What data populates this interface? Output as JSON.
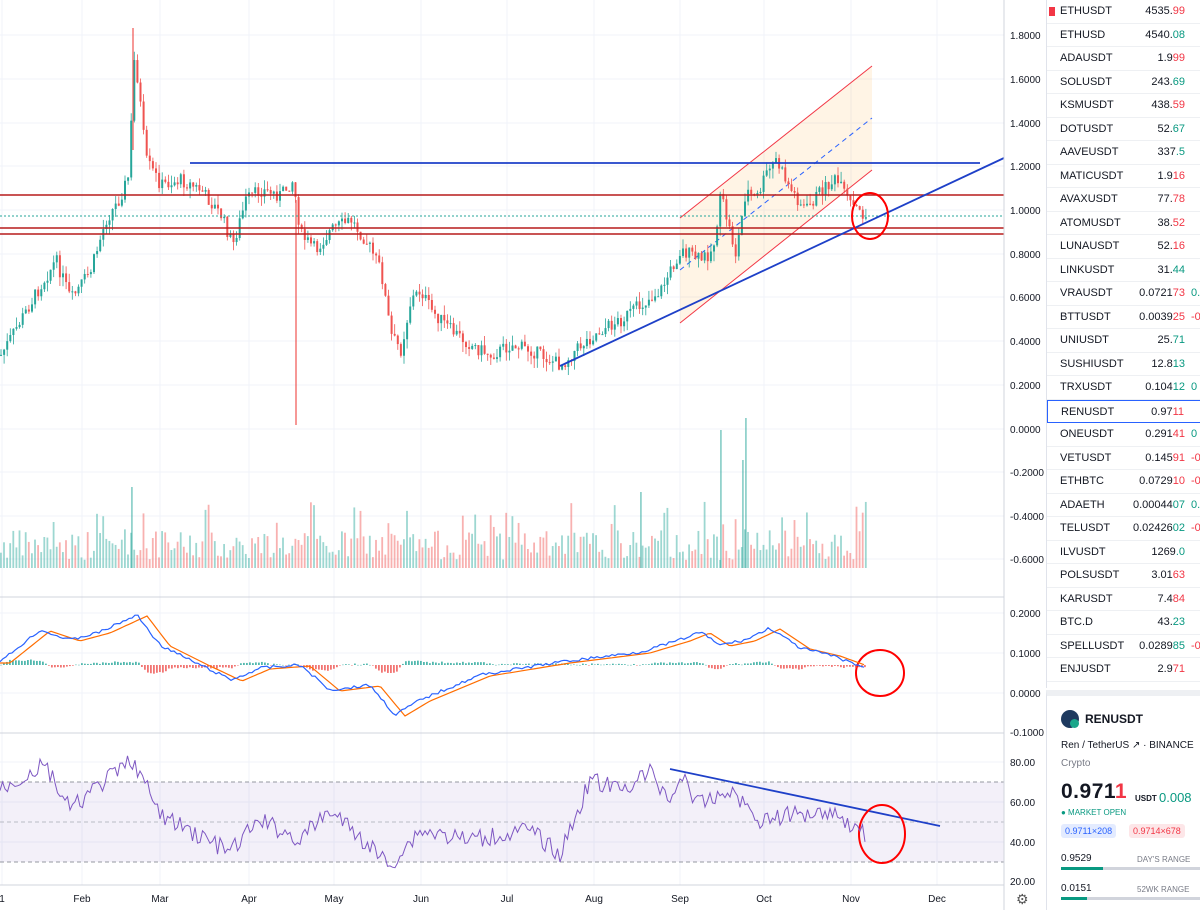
{
  "price_axis": [
    "1.8000",
    "1.6000",
    "1.4000",
    "1.2000",
    "1.0000",
    "0.8000",
    "0.6000",
    "0.4000",
    "0.2000",
    "0.0000",
    "-0.2000",
    "-0.4000",
    "-0.6000"
  ],
  "macd_axis": [
    "0.2000",
    "0.1000",
    "0.0000",
    "-0.1000"
  ],
  "rsi_axis": [
    "80.00",
    "60.00",
    "40.00",
    "20.00"
  ],
  "time_axis": [
    "1",
    "Feb",
    "Mar",
    "Apr",
    "May",
    "Jun",
    "Jul",
    "Aug",
    "Sep",
    "Oct",
    "Nov",
    "Dec"
  ],
  "watchlist": [
    {
      "symbol": "ETHUSDT",
      "price": "4535.99",
      "change": "",
      "dir": "dn",
      "flag": true
    },
    {
      "symbol": "ETHUSD",
      "price": "4540.08",
      "change": "",
      "dir": "up"
    },
    {
      "symbol": "ADAUSDT",
      "price": "1.999",
      "change": "",
      "dir": "dn"
    },
    {
      "symbol": "SOLUSDT",
      "price": "243.69",
      "change": "",
      "dir": "up"
    },
    {
      "symbol": "KSMUSDT",
      "price": "438.59",
      "change": "",
      "dir": "dn"
    },
    {
      "symbol": "DOTUSDT",
      "price": "52.67",
      "change": "",
      "dir": "up"
    },
    {
      "symbol": "AAVEUSDT",
      "price": "337.5",
      "change": "",
      "dir": "up"
    },
    {
      "symbol": "MATICUSDT",
      "price": "1.916",
      "change": "",
      "dir": "dn"
    },
    {
      "symbol": "AVAXUSDT",
      "price": "77.78",
      "change": "",
      "dir": "dn"
    },
    {
      "symbol": "ATOMUSDT",
      "price": "38.52",
      "change": "",
      "dir": "dn"
    },
    {
      "symbol": "LUNAUSDT",
      "price": "52.16",
      "change": "",
      "dir": "dn"
    },
    {
      "symbol": "LINKUSDT",
      "price": "31.44",
      "change": "",
      "dir": "up"
    },
    {
      "symbol": "VRAUSDT",
      "price": "0.072173",
      "change": "0.",
      "dir": "dn"
    },
    {
      "symbol": "BTTUSDT",
      "price": "0.003925",
      "change": "-0",
      "dir": "dn"
    },
    {
      "symbol": "UNIUSDT",
      "price": "25.71",
      "change": "",
      "dir": "up"
    },
    {
      "symbol": "SUSHIUSDT",
      "price": "12.813",
      "change": "",
      "dir": "up"
    },
    {
      "symbol": "TRXUSDT",
      "price": "0.10412",
      "change": "0",
      "dir": "up"
    },
    {
      "symbol": "RENUSDT",
      "price": "0.9711",
      "change": "",
      "dir": "dn",
      "selected": true
    },
    {
      "symbol": "ONEUSDT",
      "price": "0.29141",
      "change": "0",
      "dir": "dn"
    },
    {
      "symbol": "VETUSDT",
      "price": "0.14591",
      "change": "-0",
      "dir": "dn"
    },
    {
      "symbol": "ETHBTC",
      "price": "0.072910",
      "change": "-0",
      "dir": "dn"
    },
    {
      "symbol": "ADAETH",
      "price": "0.0004407",
      "change": "0.0",
      "dir": "up"
    },
    {
      "symbol": "TELUSDT",
      "price": "0.0242602",
      "change": "-0",
      "dir": "up"
    },
    {
      "symbol": "ILVUSDT",
      "price": "1269.0",
      "change": "",
      "dir": "up"
    },
    {
      "symbol": "POLSUSDT",
      "price": "3.0163",
      "change": "",
      "dir": "dn"
    },
    {
      "symbol": "KARUSDT",
      "price": "7.484",
      "change": "",
      "dir": "dn"
    },
    {
      "symbol": "BTC.D",
      "price": "43.23",
      "change": "",
      "dir": "up"
    },
    {
      "symbol": "SPELLUSDT",
      "price": "0.028985",
      "change": "-0",
      "dir": "up"
    },
    {
      "symbol": "ENJUSDT",
      "price": "2.971",
      "change": "",
      "dir": "dn"
    }
  ],
  "details": {
    "symbol": "RENUSDT",
    "description": "Ren / TetherUS ↗ · BINANCE",
    "type": "Crypto",
    "price_main": "0.971",
    "price_last": "1",
    "currency": "USDT",
    "change": "0.008",
    "market": "● MARKET OPEN",
    "bid": "0.9711×208",
    "ask": "0.9714×678",
    "day_low": "0.9529",
    "day_label": "DAY'S RANGE",
    "wk_low": "0.0151",
    "wk_label": "52WK RANGE"
  },
  "colors": {
    "up": "#26a69a",
    "down": "#ef5350",
    "blue": "#2962ff",
    "macd": "#2962ff",
    "signal": "#ff6d00",
    "rsi": "#7e57c2"
  }
}
